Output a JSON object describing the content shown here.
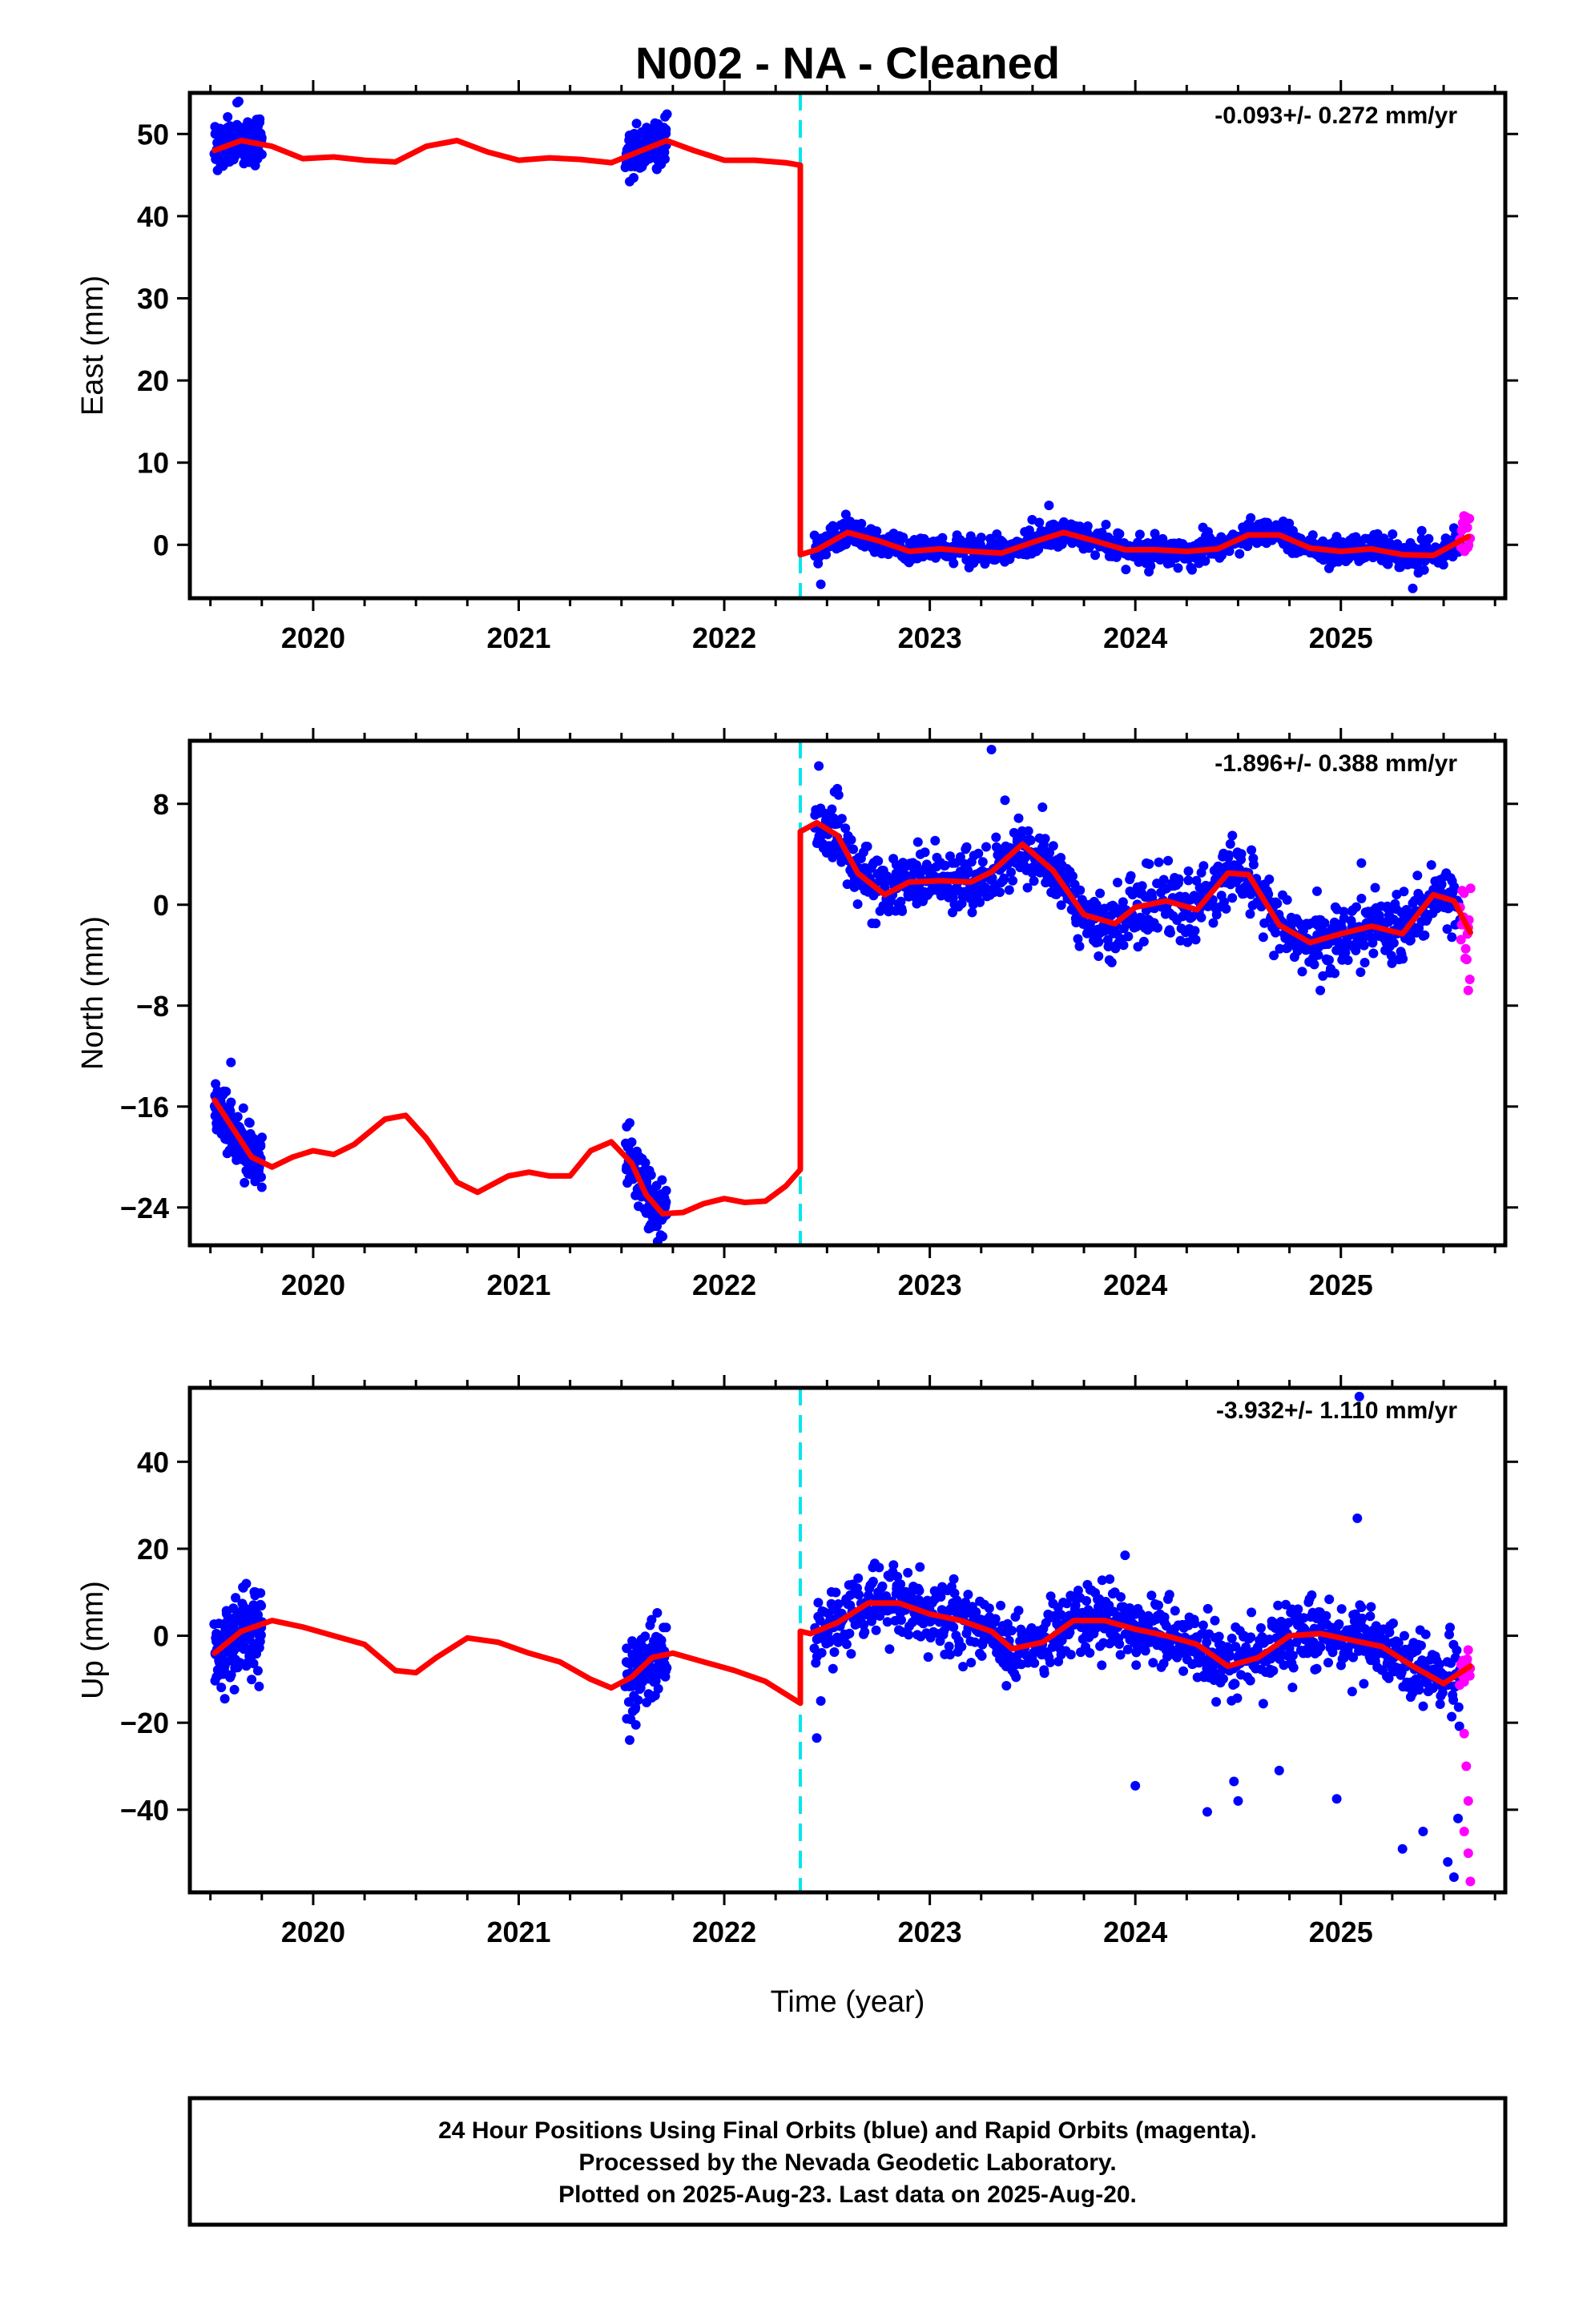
{
  "title": "N002  - NA - Cleaned",
  "xlabel": "Time (year)",
  "footer": {
    "line1": "24 Hour Positions Using Final Orbits (blue) and Rapid Orbits (magenta).",
    "line2": "Processed by the Nevada Geodetic Laboratory.",
    "line3": "Plotted on 2025-Aug-23. Last data on 2025-Aug-20."
  },
  "colors": {
    "final": "#0000ff",
    "rapid": "#ff00ff",
    "model": "#ff0000",
    "event": "#00e5ee",
    "frame": "#000000"
  },
  "chart_data": [
    {
      "type": "scatter",
      "ylabel": "East (mm)",
      "rate_text": "-0.093+/- 0.272 mm/yr",
      "xlim": [
        2019.4,
        2025.8
      ],
      "ylim": [
        -6.5,
        55
      ],
      "yticks": [
        0,
        10,
        20,
        30,
        40,
        50
      ],
      "ytick_labels": [
        "0",
        "10",
        "20",
        "30",
        "40",
        "50"
      ],
      "xticks": [
        2020,
        2021,
        2022,
        2023,
        2024,
        2025
      ],
      "xtick_labels": [
        "2020",
        "2021",
        "2022",
        "2023",
        "2024",
        "2025"
      ],
      "event_lines": [
        2022.37
      ],
      "model": {
        "x": [
          2019.52,
          2019.65,
          2019.8,
          2019.95,
          2020.1,
          2020.25,
          2020.4,
          2020.55,
          2020.7,
          2020.85,
          2021.0,
          2021.15,
          2021.3,
          2021.45,
          2021.6,
          2021.72,
          2021.85,
          2022.0,
          2022.15,
          2022.3,
          2022.37,
          2022.37,
          2022.45,
          2022.6,
          2022.75,
          2022.9,
          2023.05,
          2023.2,
          2023.35,
          2023.5,
          2023.65,
          2023.8,
          2023.95,
          2024.1,
          2024.25,
          2024.4,
          2024.55,
          2024.7,
          2024.85,
          2025.0,
          2025.15,
          2025.3,
          2025.45,
          2025.62
        ],
        "y": [
          48,
          49.2,
          48.5,
          47,
          47.2,
          46.8,
          46.6,
          48.5,
          49.2,
          47.8,
          46.8,
          47.1,
          46.9,
          46.5,
          48,
          49.2,
          48,
          46.8,
          46.8,
          46.5,
          46.2,
          -1.2,
          -0.6,
          1.5,
          0.5,
          -0.8,
          -0.5,
          -0.8,
          -1,
          0.3,
          1.5,
          0.5,
          -0.6,
          -0.6,
          -0.8,
          -0.5,
          1.2,
          1.2,
          -0.4,
          -0.8,
          -0.5,
          -1.2,
          -1.3,
          1
        ]
      },
      "series": [
        {
          "name": "Final Orbits",
          "segments": [
            {
              "x0": 2019.52,
              "x1": 2019.75,
              "n": 160,
              "spread": 1.3,
              "outliers": [
                [
                  2019.63,
                  53.8
                ],
                [
                  2019.55,
                  46.2
                ],
                [
                  2019.74,
                  51.8
                ]
              ]
            },
            {
              "x0": 2021.52,
              "x1": 2021.72,
              "n": 110,
              "spread": 1.3,
              "outliers": [
                [
                  2021.54,
                  44.2
                ],
                [
                  2021.6,
                  46.0
                ]
              ]
            },
            {
              "x0": 2022.44,
              "x1": 2025.58,
              "n": 1000,
              "spread": 0.85,
              "outliers": [
                [
                  2022.47,
                  -4.8
                ],
                [
                  2023.58,
                  4.8
                ],
                [
                  2024.6,
                  2.5
                ],
                [
                  2025.35,
                  -5.3
                ]
              ]
            }
          ]
        },
        {
          "name": "Rapid Orbits",
          "segments": [
            {
              "x0": 2025.58,
              "x1": 2025.63,
              "n": 14,
              "spread": 1.4,
              "outliers": []
            }
          ]
        }
      ]
    },
    {
      "type": "scatter",
      "ylabel": "North (mm)",
      "rate_text": "-1.896+/- 0.388 mm/yr",
      "xlim": [
        2019.4,
        2025.8
      ],
      "ylim": [
        -27,
        13
      ],
      "yticks": [
        -24,
        -16,
        -8,
        0,
        8
      ],
      "ytick_labels": [
        "−24",
        "−16",
        "−8",
        "0",
        "8"
      ],
      "xticks": [
        2020,
        2021,
        2022,
        2023,
        2024,
        2025
      ],
      "xtick_labels": [
        "2020",
        "2021",
        "2022",
        "2023",
        "2024",
        "2025"
      ],
      "event_lines": [
        2022.37
      ],
      "model": {
        "x": [
          2019.52,
          2019.6,
          2019.7,
          2019.8,
          2019.9,
          2020.0,
          2020.1,
          2020.2,
          2020.35,
          2020.45,
          2020.55,
          2020.7,
          2020.8,
          2020.95,
          2021.05,
          2021.15,
          2021.25,
          2021.35,
          2021.45,
          2021.55,
          2021.62,
          2021.7,
          2021.8,
          2021.9,
          2022.0,
          2022.1,
          2022.2,
          2022.3,
          2022.37,
          2022.37,
          2022.45,
          2022.55,
          2022.65,
          2022.78,
          2022.9,
          2023.05,
          2023.2,
          2023.3,
          2023.45,
          2023.6,
          2023.75,
          2023.9,
          2024.0,
          2024.15,
          2024.3,
          2024.45,
          2024.55,
          2024.7,
          2024.85,
          2025.0,
          2025.15,
          2025.3,
          2025.45,
          2025.55,
          2025.63
        ],
        "y": [
          -15.5,
          -17.5,
          -20,
          -20.8,
          -20,
          -19.5,
          -19.8,
          -19,
          -17,
          -16.7,
          -18.5,
          -22,
          -22.8,
          -21.5,
          -21.2,
          -21.5,
          -21.5,
          -19.5,
          -18.8,
          -20.5,
          -23,
          -24.5,
          -24.4,
          -23.7,
          -23.3,
          -23.6,
          -23.5,
          -22.3,
          -21,
          5.8,
          6.5,
          5.5,
          2.5,
          0.8,
          1.8,
          1.9,
          1.8,
          2.6,
          4.8,
          2.7,
          -0.8,
          -1.5,
          -0.2,
          0.3,
          -0.4,
          2.5,
          2.4,
          -1.6,
          -3,
          -2.3,
          -1.7,
          -2.3,
          0.8,
          0.3,
          -2.2
        ]
      },
      "series": [
        {
          "name": "Final Orbits",
          "segments": [
            {
              "x0": 2019.52,
              "x1": 2019.75,
              "n": 160,
              "spread": 1.1,
              "outliers": [
                [
                  2019.6,
                  -12.5
                ],
                [
                  2019.75,
                  -22.4
                ]
              ]
            },
            {
              "x0": 2021.52,
              "x1": 2021.72,
              "n": 110,
              "spread": 1.3,
              "outliers": [
                [
                  2021.54,
                  -17.3
                ],
                [
                  2021.7,
                  -26.3
                ]
              ]
            },
            {
              "x0": 2022.44,
              "x1": 2025.58,
              "n": 1000,
              "spread": 1.3,
              "outliers": [
                [
                  2022.46,
                  11.0
                ],
                [
                  2023.3,
                  12.3
                ],
                [
                  2024.9,
                  -6.8
                ],
                [
                  2025.1,
                  3.3
                ],
                [
                  2022.55,
                  9.2
                ]
              ]
            }
          ]
        },
        {
          "name": "Rapid Orbits",
          "segments": [
            {
              "x0": 2025.58,
              "x1": 2025.63,
              "n": 14,
              "spread": 2.0,
              "outliers": [
                [
                  2025.62,
                  -6.8
                ]
              ]
            }
          ]
        }
      ]
    },
    {
      "type": "scatter",
      "ylabel": "Up (mm)",
      "rate_text": "-3.932+/- 1.110 mm/yr",
      "xlim": [
        2019.4,
        2025.8
      ],
      "ylim": [
        -59,
        57
      ],
      "yticks": [
        -40,
        -20,
        0,
        20,
        40
      ],
      "ytick_labels": [
        "−40",
        "−20",
        "0",
        "20",
        "40"
      ],
      "xticks": [
        2020,
        2021,
        2022,
        2023,
        2024,
        2025
      ],
      "xtick_labels": [
        "2020",
        "2021",
        "2022",
        "2023",
        "2024",
        "2025"
      ],
      "event_lines": [
        2022.37
      ],
      "model": {
        "x": [
          2019.52,
          2019.65,
          2019.8,
          2019.95,
          2020.1,
          2020.25,
          2020.4,
          2020.5,
          2020.6,
          2020.75,
          2020.9,
          2021.05,
          2021.2,
          2021.35,
          2021.45,
          2021.55,
          2021.65,
          2021.75,
          2021.9,
          2022.05,
          2022.2,
          2022.37,
          2022.37,
          2022.42,
          2022.55,
          2022.7,
          2022.85,
          2023.0,
          2023.15,
          2023.3,
          2023.4,
          2023.55,
          2023.7,
          2023.85,
          2024.0,
          2024.15,
          2024.3,
          2024.45,
          2024.6,
          2024.75,
          2024.9,
          2025.05,
          2025.2,
          2025.35,
          2025.5,
          2025.63
        ],
        "y": [
          -4,
          1,
          3.5,
          2,
          0,
          -2,
          -8,
          -8.5,
          -5,
          -0.5,
          -1.5,
          -4,
          -6,
          -10,
          -12,
          -9.5,
          -5,
          -4,
          -6,
          -8,
          -10.5,
          -15.5,
          1,
          0.5,
          3,
          7.5,
          7.5,
          5,
          3.5,
          1,
          -3,
          -1.5,
          3.5,
          3.5,
          1.5,
          0,
          -2,
          -7,
          -5,
          0,
          0.5,
          -1,
          -2.5,
          -7,
          -11,
          -7
        ]
      },
      "series": [
        {
          "name": "Final Orbits",
          "segments": [
            {
              "x0": 2019.52,
              "x1": 2019.75,
              "n": 160,
              "spread": 4.5,
              "outliers": [
                [
                  2019.57,
                  -14.5
                ],
                [
                  2019.66,
                  11.0
                ],
                [
                  2019.72,
                  10.0
                ]
              ]
            },
            {
              "x0": 2021.52,
              "x1": 2021.72,
              "n": 110,
              "spread": 4.5,
              "outliers": [
                [
                  2021.54,
                  -24.0
                ],
                [
                  2021.57,
                  -20.5
                ]
              ]
            },
            {
              "x0": 2022.44,
              "x1": 2025.5,
              "n": 1000,
              "spread": 4.0,
              "outliers": [
                [
                  2022.45,
                  -23.5
                ],
                [
                  2022.47,
                  -15.0
                ],
                [
                  2023.95,
                  18.5
                ],
                [
                  2024.0,
                  -34.5
                ],
                [
                  2024.35,
                  -40.5
                ],
                [
                  2024.48,
                  -33.5
                ],
                [
                  2024.5,
                  -38.0
                ],
                [
                  2024.7,
                  -31.0
                ],
                [
                  2024.98,
                  -37.5
                ],
                [
                  2025.08,
                  27.0
                ],
                [
                  2025.09,
                  55.0
                ],
                [
                  2025.3,
                  -49.0
                ],
                [
                  2025.4,
                  -45.0
                ]
              ]
            },
            {
              "x0": 2025.52,
              "x1": 2025.58,
              "n": 20,
              "spread": 5.0,
              "outliers": [
                [
                  2025.52,
                  -52.0
                ],
                [
                  2025.55,
                  -55.5
                ],
                [
                  2025.57,
                  -42.0
                ]
              ]
            }
          ]
        },
        {
          "name": "Rapid Orbits",
          "segments": [
            {
              "x0": 2025.58,
              "x1": 2025.63,
              "n": 16,
              "spread": 2.0,
              "outliers": [
                [
                  2025.6,
                  -22.5
                ],
                [
                  2025.61,
                  -30.0
                ],
                [
                  2025.62,
                  -38.0
                ],
                [
                  2025.6,
                  -45.0
                ],
                [
                  2025.62,
                  -50.0
                ],
                [
                  2025.63,
                  -56.5
                ]
              ]
            }
          ]
        }
      ]
    }
  ]
}
